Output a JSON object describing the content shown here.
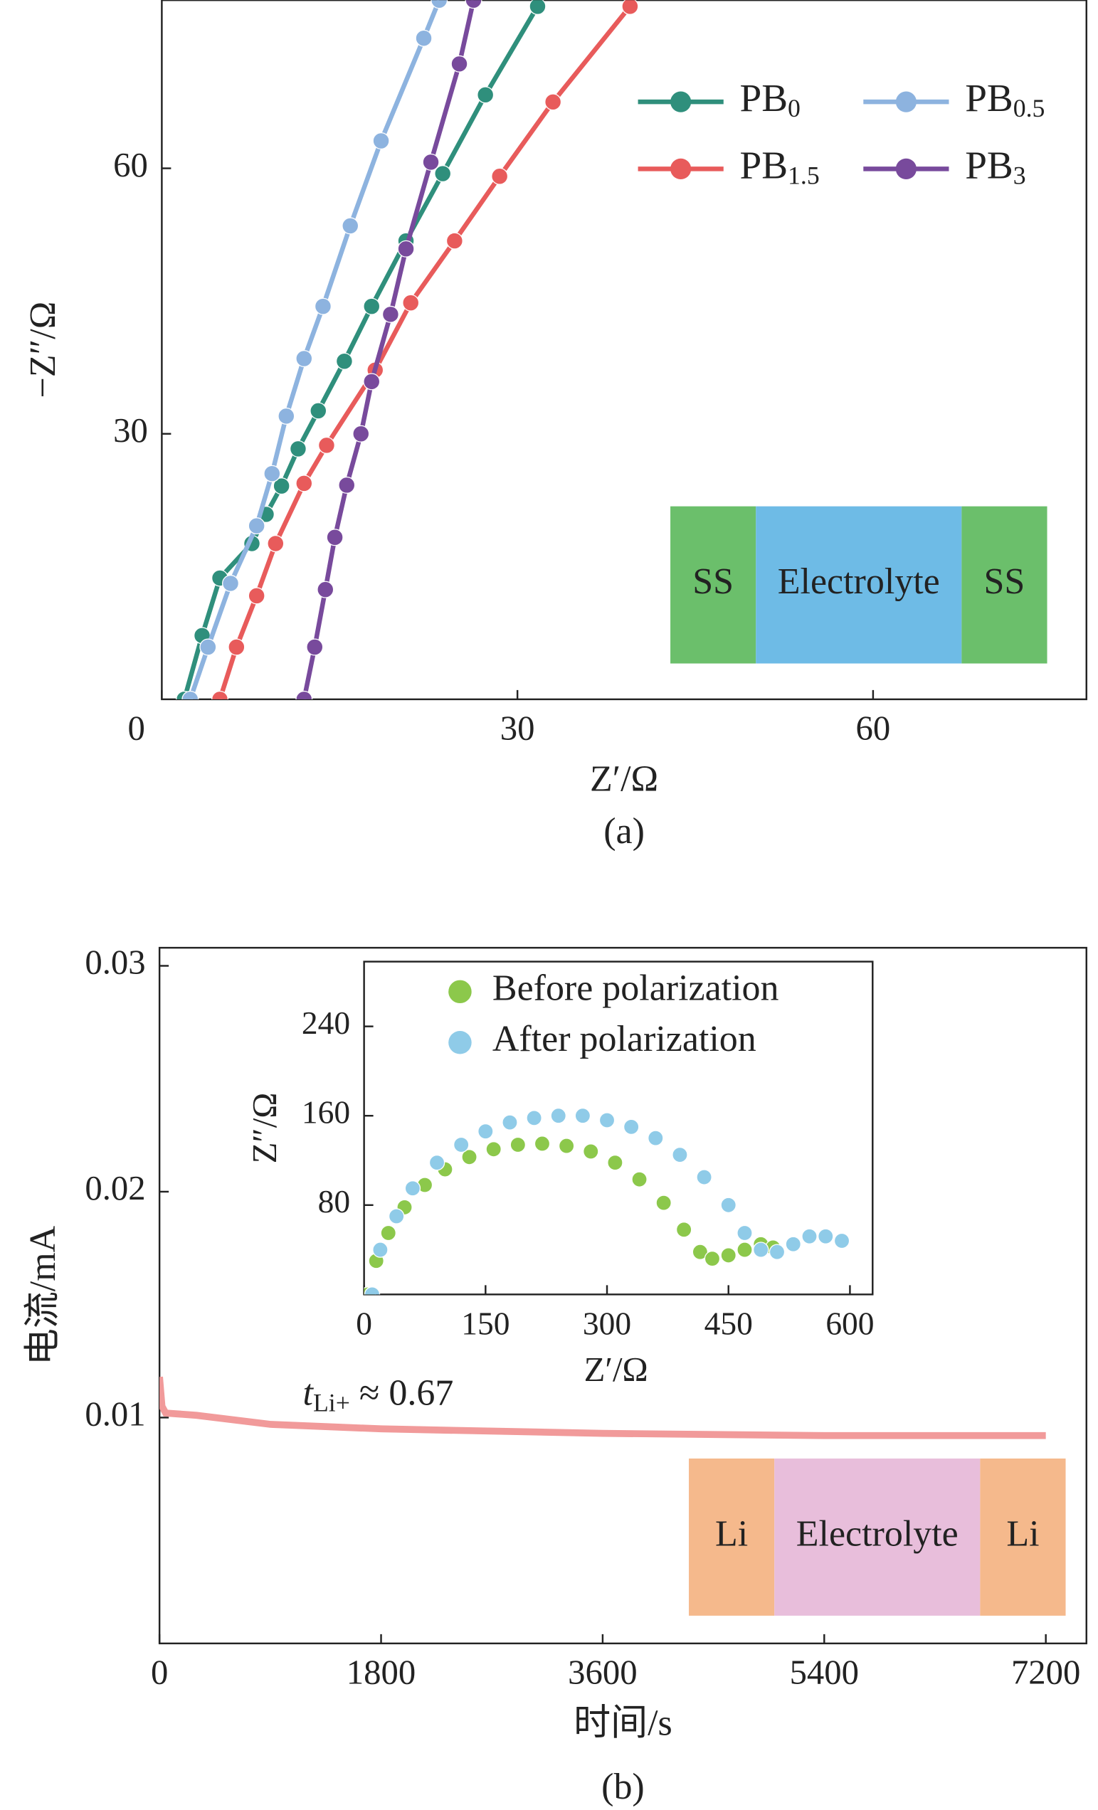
{
  "chart_data": [
    {
      "type": "line",
      "markers": true,
      "xlabel": "Z′/Ω",
      "ylabel": "−Z″/Ω",
      "caption": "(a)",
      "xlim": [
        0,
        78
      ],
      "ylim": [
        0,
        79
      ],
      "xticks": [
        0,
        30,
        60
      ],
      "yticks": [
        30,
        60
      ],
      "series": [
        {
          "name": "PB0",
          "color": "#2f8f7c",
          "x": [
            1.9,
            3.4,
            4.9,
            7.6,
            8.8,
            10.1,
            11.5,
            13.2,
            15.4,
            17.7,
            20.6,
            23.7,
            27.3,
            31.7
          ],
          "values": [
            0,
            7.2,
            13.7,
            17.6,
            20.9,
            24.1,
            28.3,
            32.6,
            38.2,
            44.4,
            51.8,
            59.4,
            68.3,
            78.3
          ]
        },
        {
          "name": "PB0.5",
          "color": "#8db3df",
          "x": [
            2.4,
            3.9,
            5.8,
            8.0,
            9.3,
            10.5,
            12,
            13.6,
            15.9,
            18.5,
            22.1,
            23.4
          ],
          "values": [
            0,
            5.9,
            13.1,
            19.6,
            25.5,
            32,
            38.5,
            44.4,
            53.5,
            63.1,
            74.7,
            79
          ]
        },
        {
          "name": "PB1.5",
          "color": "#e85b5b",
          "x": [
            4.9,
            6.3,
            8,
            9.6,
            12,
            13.9,
            18,
            21,
            24.7,
            28.5,
            33,
            39.5
          ],
          "values": [
            0,
            5.9,
            11.7,
            17.6,
            24.4,
            28.7,
            37.2,
            44.8,
            51.8,
            59.1,
            67.5,
            78.3
          ]
        },
        {
          "name": "PB3",
          "color": "#784a9c",
          "x": [
            12,
            12.9,
            13.8,
            14.6,
            15.6,
            16.8,
            17.7,
            19.3,
            20.6,
            22.7,
            25.1,
            26.3
          ],
          "values": [
            0,
            5.9,
            12.4,
            18.3,
            24.2,
            30,
            35.9,
            43.5,
            50.9,
            60.7,
            71.8,
            79
          ]
        }
      ],
      "schematic": [
        {
          "label": "SS",
          "color": "#6bbf6b"
        },
        {
          "label": "Electrolyte",
          "color": "#6ebbe6"
        },
        {
          "label": "SS",
          "color": "#6bbf6b"
        }
      ]
    },
    {
      "type": "line",
      "markers": false,
      "xlabel": "时间/s",
      "ylabel": "电流/mA",
      "caption": "(b)",
      "annotation": "tLi+ ≈ 0.67",
      "xlim": [
        0,
        7530
      ],
      "ylim": [
        0,
        0.0308
      ],
      "xticks": [
        0,
        1800,
        3600,
        5400,
        7200
      ],
      "yticks": [
        0.01,
        0.02,
        0.03
      ],
      "series": [
        {
          "name": null,
          "color": "#f19a9a",
          "x": [
            0,
            20,
            50,
            300,
            900,
            1800,
            3600,
            5400,
            7200
          ],
          "values": [
            0.0118,
            0.0105,
            0.0102,
            0.0101,
            0.0097,
            0.0095,
            0.0093,
            0.0092,
            0.0092
          ]
        }
      ],
      "schematic": [
        {
          "label": "Li",
          "color": "#f5b98c"
        },
        {
          "label": "Electrolyte",
          "color": "#e8bedb"
        },
        {
          "label": "Li",
          "color": "#f5b98c"
        }
      ]
    },
    {
      "type": "scatter",
      "xlabel": "Z′/Ω",
      "ylabel": "Z″/Ω",
      "xlim": [
        0,
        628
      ],
      "ylim": [
        0,
        298
      ],
      "xticks": [
        0,
        150,
        300,
        450,
        600
      ],
      "yticks": [
        80,
        160,
        240
      ],
      "series": [
        {
          "name": "Before polarization",
          "color": "#8cc84b",
          "x": [
            5,
            15,
            30,
            50,
            75,
            100,
            130,
            160,
            190,
            220,
            250,
            280,
            310,
            340,
            370,
            395,
            415,
            430,
            450,
            470,
            490,
            505
          ],
          "values": [
            0,
            30,
            55,
            78,
            98,
            112,
            123,
            130,
            134,
            135,
            133,
            128,
            118,
            103,
            82,
            58,
            38,
            32,
            35,
            40,
            45,
            42
          ]
        },
        {
          "name": "After polarization",
          "color": "#8fcbe8",
          "x": [
            10,
            20,
            40,
            60,
            90,
            120,
            150,
            180,
            210,
            240,
            270,
            300,
            330,
            360,
            390,
            420,
            450,
            470,
            490,
            510,
            530,
            550,
            570,
            590
          ],
          "values": [
            0,
            40,
            70,
            95,
            118,
            134,
            146,
            154,
            158,
            160,
            160,
            156,
            150,
            140,
            125,
            105,
            80,
            55,
            40,
            38,
            45,
            52,
            52,
            48
          ]
        }
      ]
    }
  ]
}
